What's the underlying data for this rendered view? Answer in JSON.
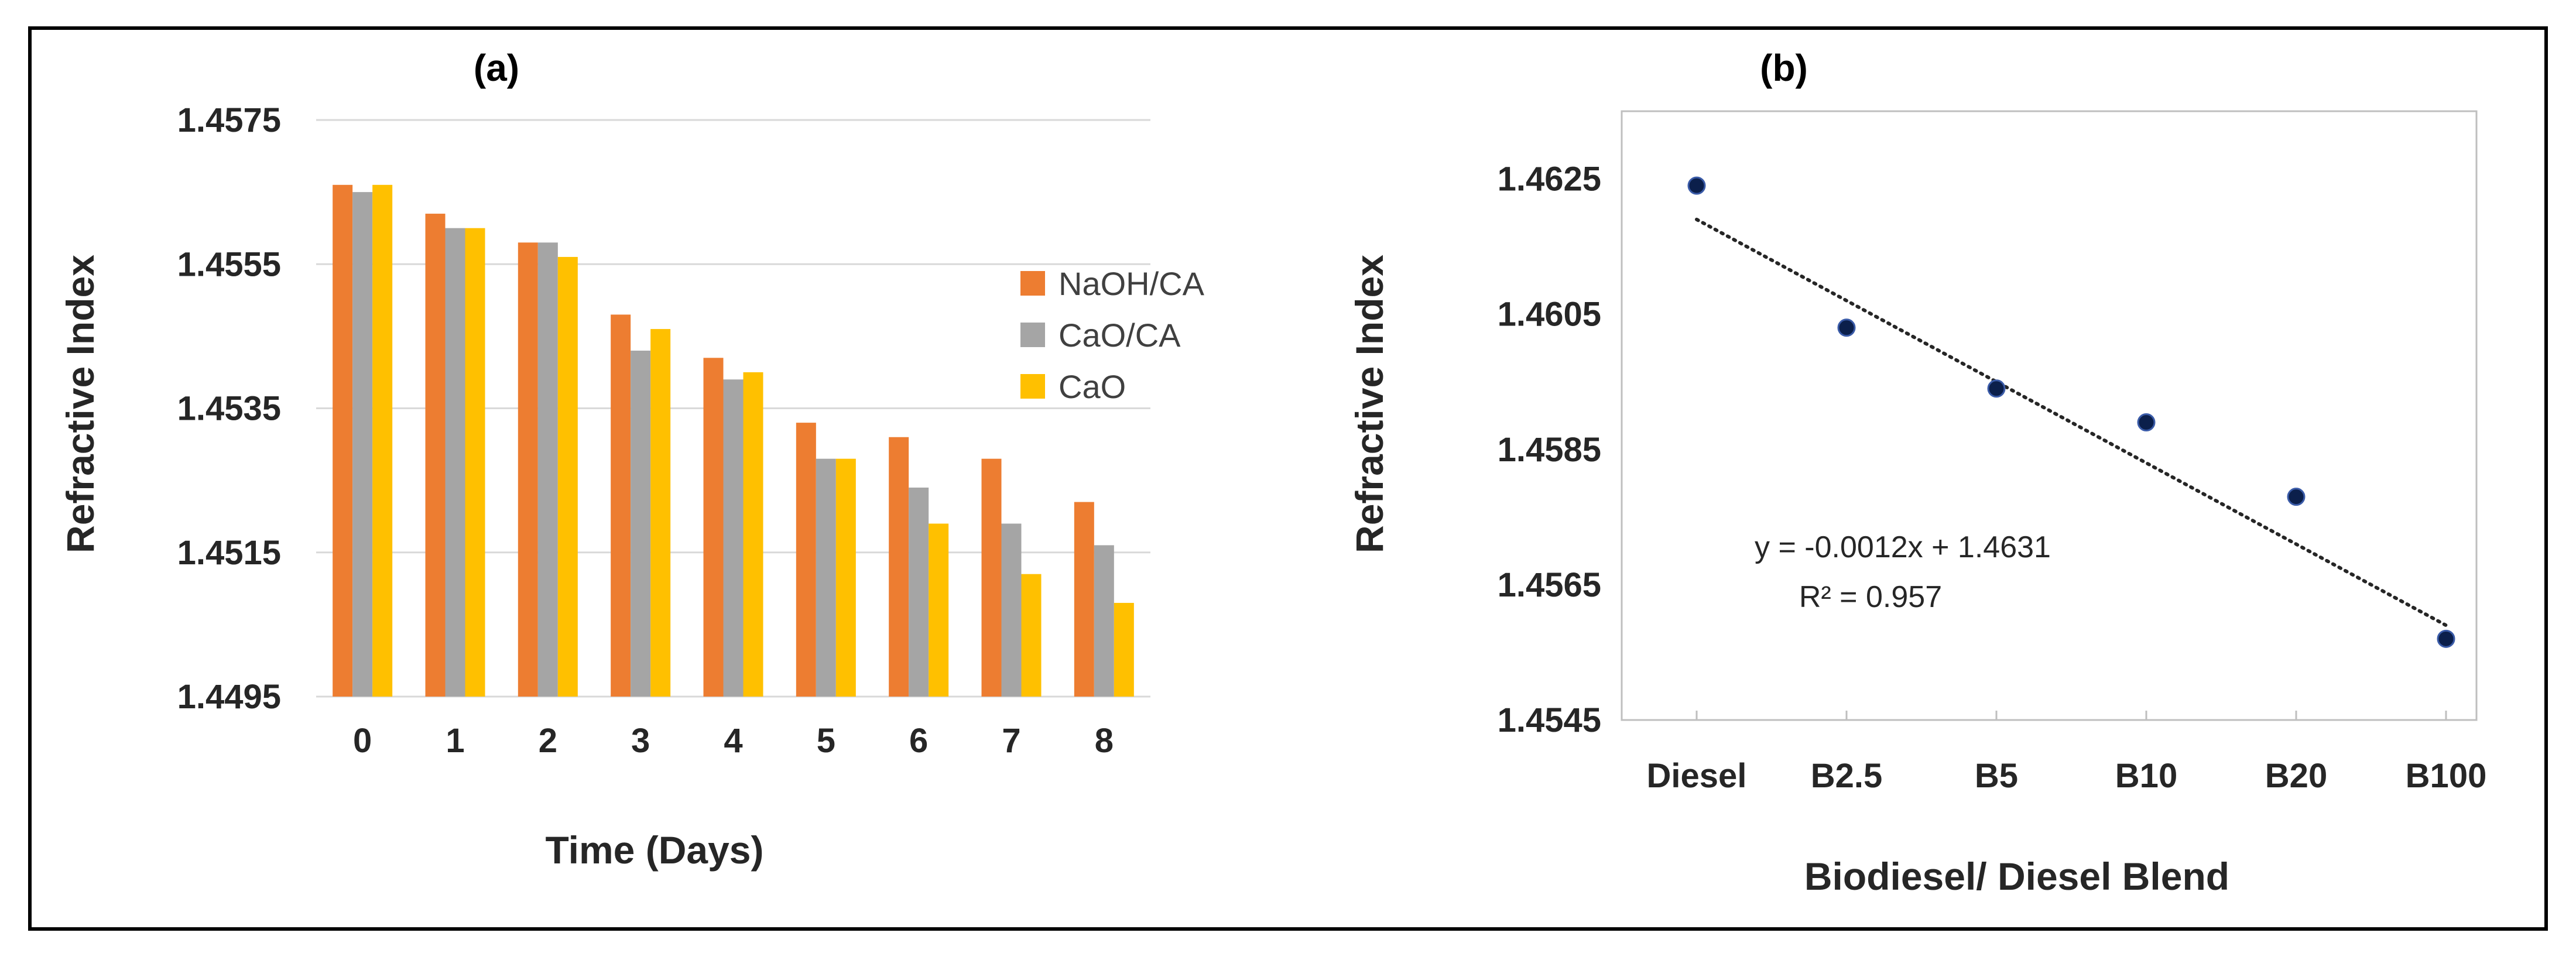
{
  "chart_data": [
    {
      "type": "bar",
      "title": "(a)",
      "xlabel": "Time (Days)",
      "ylabel": "Refractive Index",
      "categories": [
        "0",
        "1",
        "2",
        "3",
        "4",
        "5",
        "6",
        "7",
        "8"
      ],
      "ylim": [
        1.4495,
        1.4575
      ],
      "yticks": [
        "1.4495",
        "1.4515",
        "1.4535",
        "1.4555",
        "1.4575"
      ],
      "grid": true,
      "legend_position": "right",
      "series": [
        {
          "name": "NaOH/CA",
          "color": "#ED7D31",
          "values": [
            1.4566,
            1.4562,
            1.4558,
            1.4548,
            1.4542,
            1.4533,
            1.4531,
            1.4528,
            1.4522
          ]
        },
        {
          "name": "CaO/CA",
          "color": "#A5A5A5",
          "values": [
            1.4565,
            1.456,
            1.4558,
            1.4543,
            1.4539,
            1.4528,
            1.4524,
            1.4519,
            1.4516
          ]
        },
        {
          "name": "CaO",
          "color": "#FFC000",
          "values": [
            1.4566,
            1.456,
            1.4556,
            1.4546,
            1.454,
            1.4528,
            1.4519,
            1.4512,
            1.4508
          ]
        }
      ]
    },
    {
      "type": "scatter",
      "title": "(b)",
      "xlabel": "Biodiesel/ Diesel Blend",
      "ylabel": "Refractive Index",
      "categories": [
        "Diesel",
        "B2.5",
        "B5",
        "B10",
        "B20",
        "B100"
      ],
      "values": [
        1.4624,
        1.4603,
        1.4594,
        1.4589,
        1.4578,
        1.4557
      ],
      "ylim": [
        1.4545,
        1.4635
      ],
      "yticks": [
        "1.4545",
        "1.4565",
        "1.4585",
        "1.4605",
        "1.4625"
      ],
      "marker_color": "#0B1F4B",
      "trendline": {
        "type": "linear",
        "slope": -0.0012,
        "intercept": 1.4631,
        "style": "dotted"
      },
      "annotations": [
        "y = -0.0012x + 1.4631",
        "R² = 0.957"
      ],
      "grid": false
    }
  ]
}
